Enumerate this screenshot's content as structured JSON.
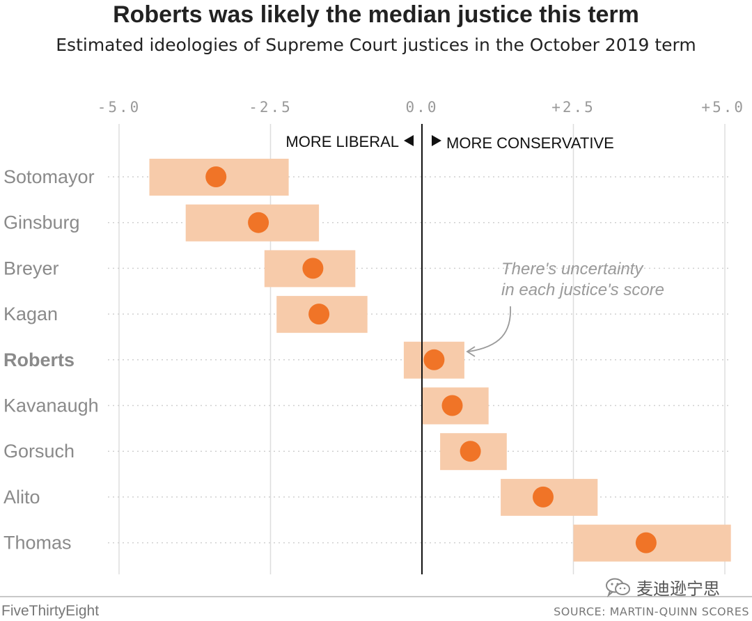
{
  "chart_data": {
    "type": "interval-dot",
    "title": "Roberts was likely the median justice this term",
    "subtitle": "Estimated ideologies of Supreme Court justices in the October 2019 term",
    "xlim": [
      -5.0,
      5.0
    ],
    "x_ticks": [
      -5.0,
      -2.5,
      0.0,
      2.5,
      5.0
    ],
    "x_tick_labels": [
      "-5.0",
      "-2.5",
      "0.0",
      "+2.5",
      "+5.0"
    ],
    "direction_labels": {
      "left": "MORE LIBERAL",
      "right": "MORE CONSERVATIVE"
    },
    "grid": true,
    "justices": [
      {
        "name": "Sotomayor",
        "score": -3.4,
        "low": -4.5,
        "high": -2.2,
        "bold": false
      },
      {
        "name": "Ginsburg",
        "score": -2.7,
        "low": -3.9,
        "high": -1.7,
        "bold": false
      },
      {
        "name": "Breyer",
        "score": -1.8,
        "low": -2.6,
        "high": -1.1,
        "bold": false
      },
      {
        "name": "Kagan",
        "score": -1.7,
        "low": -2.4,
        "high": -0.9,
        "bold": false
      },
      {
        "name": "Roberts",
        "score": 0.2,
        "low": -0.3,
        "high": 0.7,
        "bold": true
      },
      {
        "name": "Kavanaugh",
        "score": 0.5,
        "low": 0.0,
        "high": 1.1,
        "bold": false
      },
      {
        "name": "Gorsuch",
        "score": 0.8,
        "low": 0.3,
        "high": 1.4,
        "bold": false
      },
      {
        "name": "Alito",
        "score": 2.0,
        "low": 1.3,
        "high": 2.9,
        "bold": false
      },
      {
        "name": "Thomas",
        "score": 3.7,
        "low": 2.5,
        "high": 5.1,
        "bold": false
      }
    ],
    "annotation": {
      "lines": [
        "There's uncertainty",
        "in each justice's score"
      ],
      "target": "Roberts"
    },
    "colors": {
      "dot": "#f07427",
      "band": "#f7cbaa",
      "grid": "#dddddd",
      "zero_line": "#111111",
      "label": "#8a8a8a"
    }
  },
  "footer": {
    "brand": "FiveThirtyEight",
    "source": "SOURCE: MARTIN-QUINN SCORES",
    "watermark": "麦迪逊宁思",
    "watermark_icon": "wechat-icon"
  }
}
